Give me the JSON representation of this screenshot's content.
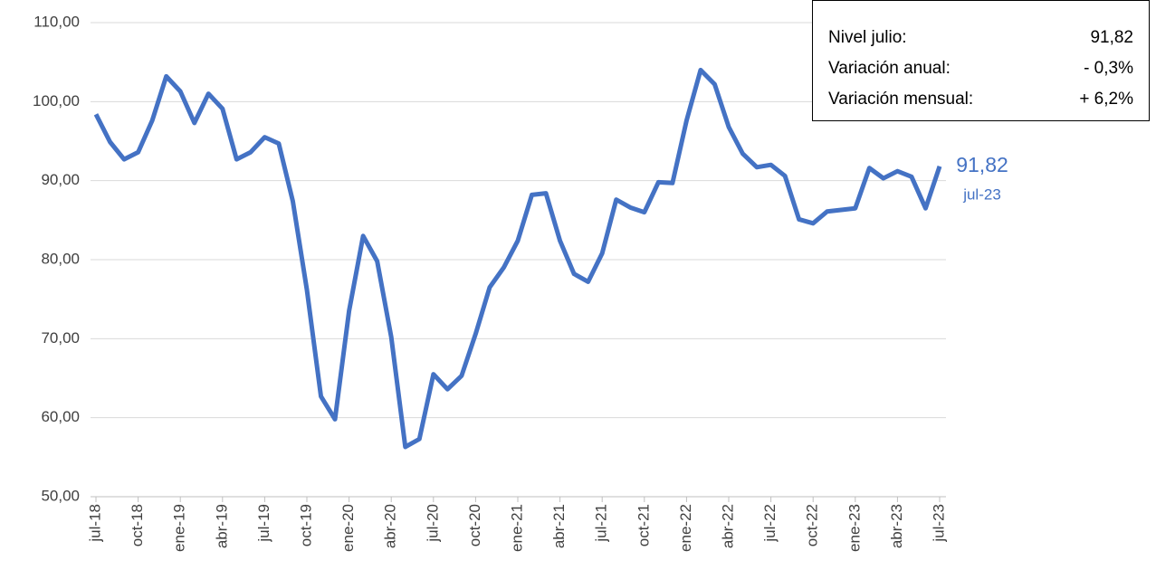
{
  "chart_data": {
    "type": "line",
    "categories": [
      "jul-18",
      null,
      null,
      "oct-18",
      null,
      null,
      "ene-19",
      null,
      null,
      "abr-19",
      null,
      null,
      "jul-19",
      null,
      null,
      "oct-19",
      null,
      null,
      "ene-20",
      null,
      null,
      "abr-20",
      null,
      null,
      "jul-20",
      null,
      null,
      "oct-20",
      null,
      null,
      "ene-21",
      null,
      null,
      "abr-21",
      null,
      null,
      "jul-21",
      null,
      null,
      "oct-21",
      null,
      null,
      "ene-22",
      null,
      null,
      "abr-22",
      null,
      null,
      "jul-22",
      null,
      null,
      "oct-22",
      null,
      null,
      "ene-23",
      null,
      null,
      "abr-23",
      null,
      null,
      "jul-23"
    ],
    "series": [
      {
        "color": "#4472c4",
        "values": [
          98.4,
          94.9,
          92.7,
          93.6,
          97.6,
          103.2,
          101.3,
          97.3,
          101.0,
          99.1,
          92.7,
          93.6,
          95.5,
          94.7,
          87.4,
          76.2,
          62.7,
          59.8,
          73.5,
          83.0,
          79.8,
          70.2,
          56.3,
          57.3,
          65.5,
          63.6,
          65.3,
          70.6,
          76.5,
          79.0,
          82.4,
          88.2,
          88.4,
          82.4,
          78.2,
          77.2,
          80.8,
          87.6,
          86.6,
          86.0,
          89.8,
          89.7,
          97.6,
          104.0,
          102.2,
          96.8,
          93.4,
          91.7,
          92.0,
          90.6,
          85.1,
          84.6,
          86.1,
          86.3,
          86.5,
          91.6,
          90.3,
          91.2,
          90.5,
          86.5,
          91.82
        ]
      }
    ],
    "end_label": "91,82",
    "ylim": [
      50,
      110
    ],
    "yticks": [
      {
        "value": 50,
        "label": "50,00"
      },
      {
        "value": 60,
        "label": "60,00"
      },
      {
        "value": 70,
        "label": "70,00"
      },
      {
        "value": 80,
        "label": "80,00"
      },
      {
        "value": 90,
        "label": "90,00"
      },
      {
        "value": 100,
        "label": "100,00"
      },
      {
        "value": 110,
        "label": "110,00"
      }
    ],
    "grid": true
  },
  "info_box": {
    "rows": [
      {
        "label": "Nivel julio:",
        "value": "91,82"
      },
      {
        "label": "Variación anual:",
        "value": "- 0,3%"
      },
      {
        "label": "Variación mensual:",
        "value": "+ 6,2%"
      }
    ]
  }
}
